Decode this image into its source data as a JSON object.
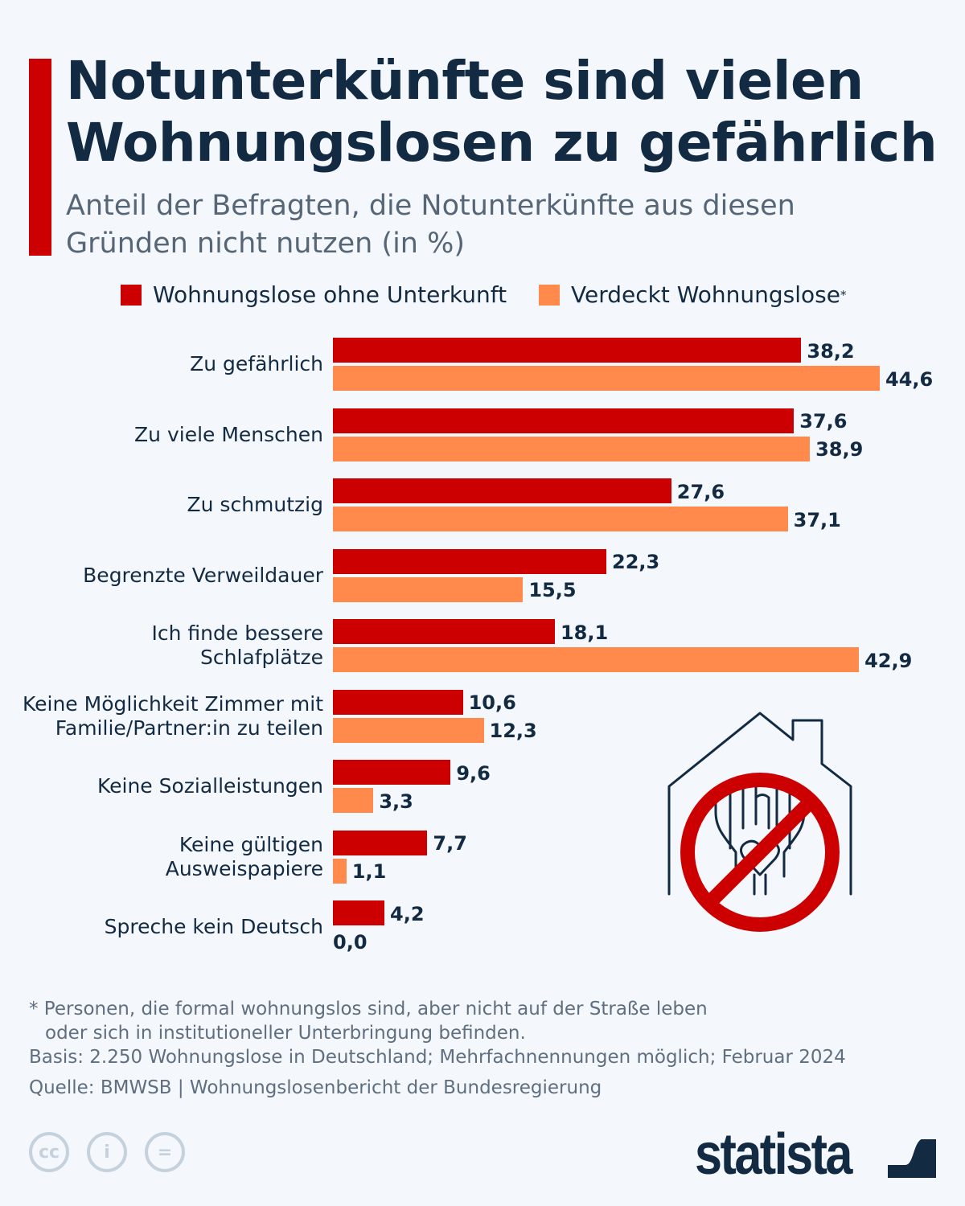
{
  "header": {
    "title": "Notunterkünfte sind vielen Wohnungslosen zu gefährlich",
    "subtitle": "Anteil der Befragten, die Notunterkünfte aus diesen Gründen nicht nutzen (in %)"
  },
  "chart_data": {
    "type": "bar",
    "orientation": "horizontal",
    "categories": [
      "Zu gefährlich",
      "Zu viele Menschen",
      "Zu schmutzig",
      "Begrenzte Verweildauer",
      "Ich finde bessere Schlafplätze",
      "Keine Möglichkeit Zimmer mit Familie/Partner:in zu teilen",
      "Keine Sozialleistungen",
      "Keine gültigen Ausweispapiere",
      "Spreche kein Deutsch"
    ],
    "category_lines": [
      [
        "Zu gefährlich"
      ],
      [
        "Zu viele Menschen"
      ],
      [
        "Zu schmutzig"
      ],
      [
        "Begrenzte Verweildauer"
      ],
      [
        "Ich finde bessere",
        "Schlafplätze"
      ],
      [
        "Keine Möglichkeit Zimmer mit",
        "Familie/Partner:in zu teilen"
      ],
      [
        "Keine Sozialleistungen"
      ],
      [
        "Keine gültigen",
        "Ausweispapiere"
      ],
      [
        "Spreche kein Deutsch"
      ]
    ],
    "series": [
      {
        "name": "Wohnungslose ohne Unterkunft",
        "color": "#cc0000",
        "values": [
          38.2,
          37.6,
          27.6,
          22.3,
          18.1,
          10.6,
          9.6,
          7.7,
          4.2
        ],
        "labels": [
          "38,2",
          "37,6",
          "27,6",
          "22,3",
          "18,1",
          "10,6",
          "9,6",
          "7,7",
          "4,2"
        ]
      },
      {
        "name": "Verdeckt Wohnungslose",
        "legend_mark": "*",
        "color": "#ff8a4c",
        "values": [
          44.6,
          38.9,
          37.1,
          15.5,
          42.9,
          12.3,
          3.3,
          1.1,
          0.0
        ],
        "labels": [
          "44,6",
          "38,9",
          "37,1",
          "15,5",
          "42,9",
          "12,3",
          "3,3",
          "1,1",
          "0,0"
        ]
      }
    ],
    "grid": false,
    "legend": "top"
  },
  "footer": {
    "note_line1": "* Personen, die formal wohnungslos sind, aber nicht auf der Straße leben",
    "note_line2": "oder sich in institutioneller Unterbringung befinden.",
    "basis": "Basis: 2.250 Wohnungslose in Deutschland; Mehrfachnennungen möglich; Februar 2024",
    "source": "Quelle: BMWSB | Wohnungslosenbericht der Bundesregierung",
    "license_icons": [
      "cc-icon",
      "attribution-icon",
      "no-derivatives-icon"
    ],
    "brand": "statista"
  }
}
